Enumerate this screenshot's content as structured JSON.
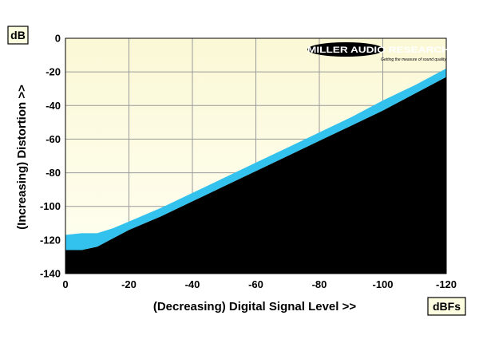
{
  "chart_data": {
    "type": "area",
    "xlabel": "(Decreasing) Digital Signal Level >>",
    "ylabel": "(Increasing) Distortion >>",
    "x_unit": "dBFs",
    "y_unit": "dB",
    "xlim": [
      0,
      -120
    ],
    "ylim": [
      -140,
      0
    ],
    "x_ticks": [
      "0",
      "-20",
      "-40",
      "-60",
      "-80",
      "-100",
      "-120"
    ],
    "x_tick_values": [
      0,
      -20,
      -40,
      -60,
      -80,
      -100,
      -120
    ],
    "y_ticks": [
      "0",
      "-20",
      "-40",
      "-60",
      "-80",
      "-100",
      "-120",
      "-140"
    ],
    "y_tick_values": [
      0,
      -20,
      -40,
      -60,
      -80,
      -100,
      -120,
      -140
    ],
    "grid": true,
    "series": [
      {
        "upper": [
          [
            0,
            -117
          ],
          [
            -5,
            -116
          ],
          [
            -10,
            -116
          ],
          [
            -15,
            -113
          ],
          [
            -20,
            -109
          ],
          [
            -30,
            -101
          ],
          [
            -40,
            -92
          ],
          [
            -50,
            -83
          ],
          [
            -60,
            -74
          ],
          [
            -70,
            -65
          ],
          [
            -80,
            -56
          ],
          [
            -90,
            -47
          ],
          [
            -100,
            -37
          ],
          [
            -110,
            -28
          ],
          [
            -120,
            -18
          ]
        ],
        "lower": [
          [
            0,
            -126
          ],
          [
            -5,
            -126
          ],
          [
            -10,
            -124
          ],
          [
            -15,
            -119
          ],
          [
            -20,
            -114
          ],
          [
            -30,
            -106
          ],
          [
            -40,
            -97
          ],
          [
            -50,
            -88
          ],
          [
            -60,
            -79
          ],
          [
            -70,
            -70
          ],
          [
            -80,
            -61
          ],
          [
            -90,
            -52
          ],
          [
            -100,
            -43
          ],
          [
            -110,
            -33
          ],
          [
            -120,
            -23
          ]
        ]
      }
    ],
    "colors": {
      "background_fill": "#fdfde0",
      "background_top": "#fdfde0",
      "band": "#33c1ee",
      "below": "#000000",
      "grid": "#9a9a9a"
    },
    "logo": {
      "text": "MILLER AUDIO RESEARCH",
      "tagline": "Getting the measure of sound quality"
    }
  }
}
